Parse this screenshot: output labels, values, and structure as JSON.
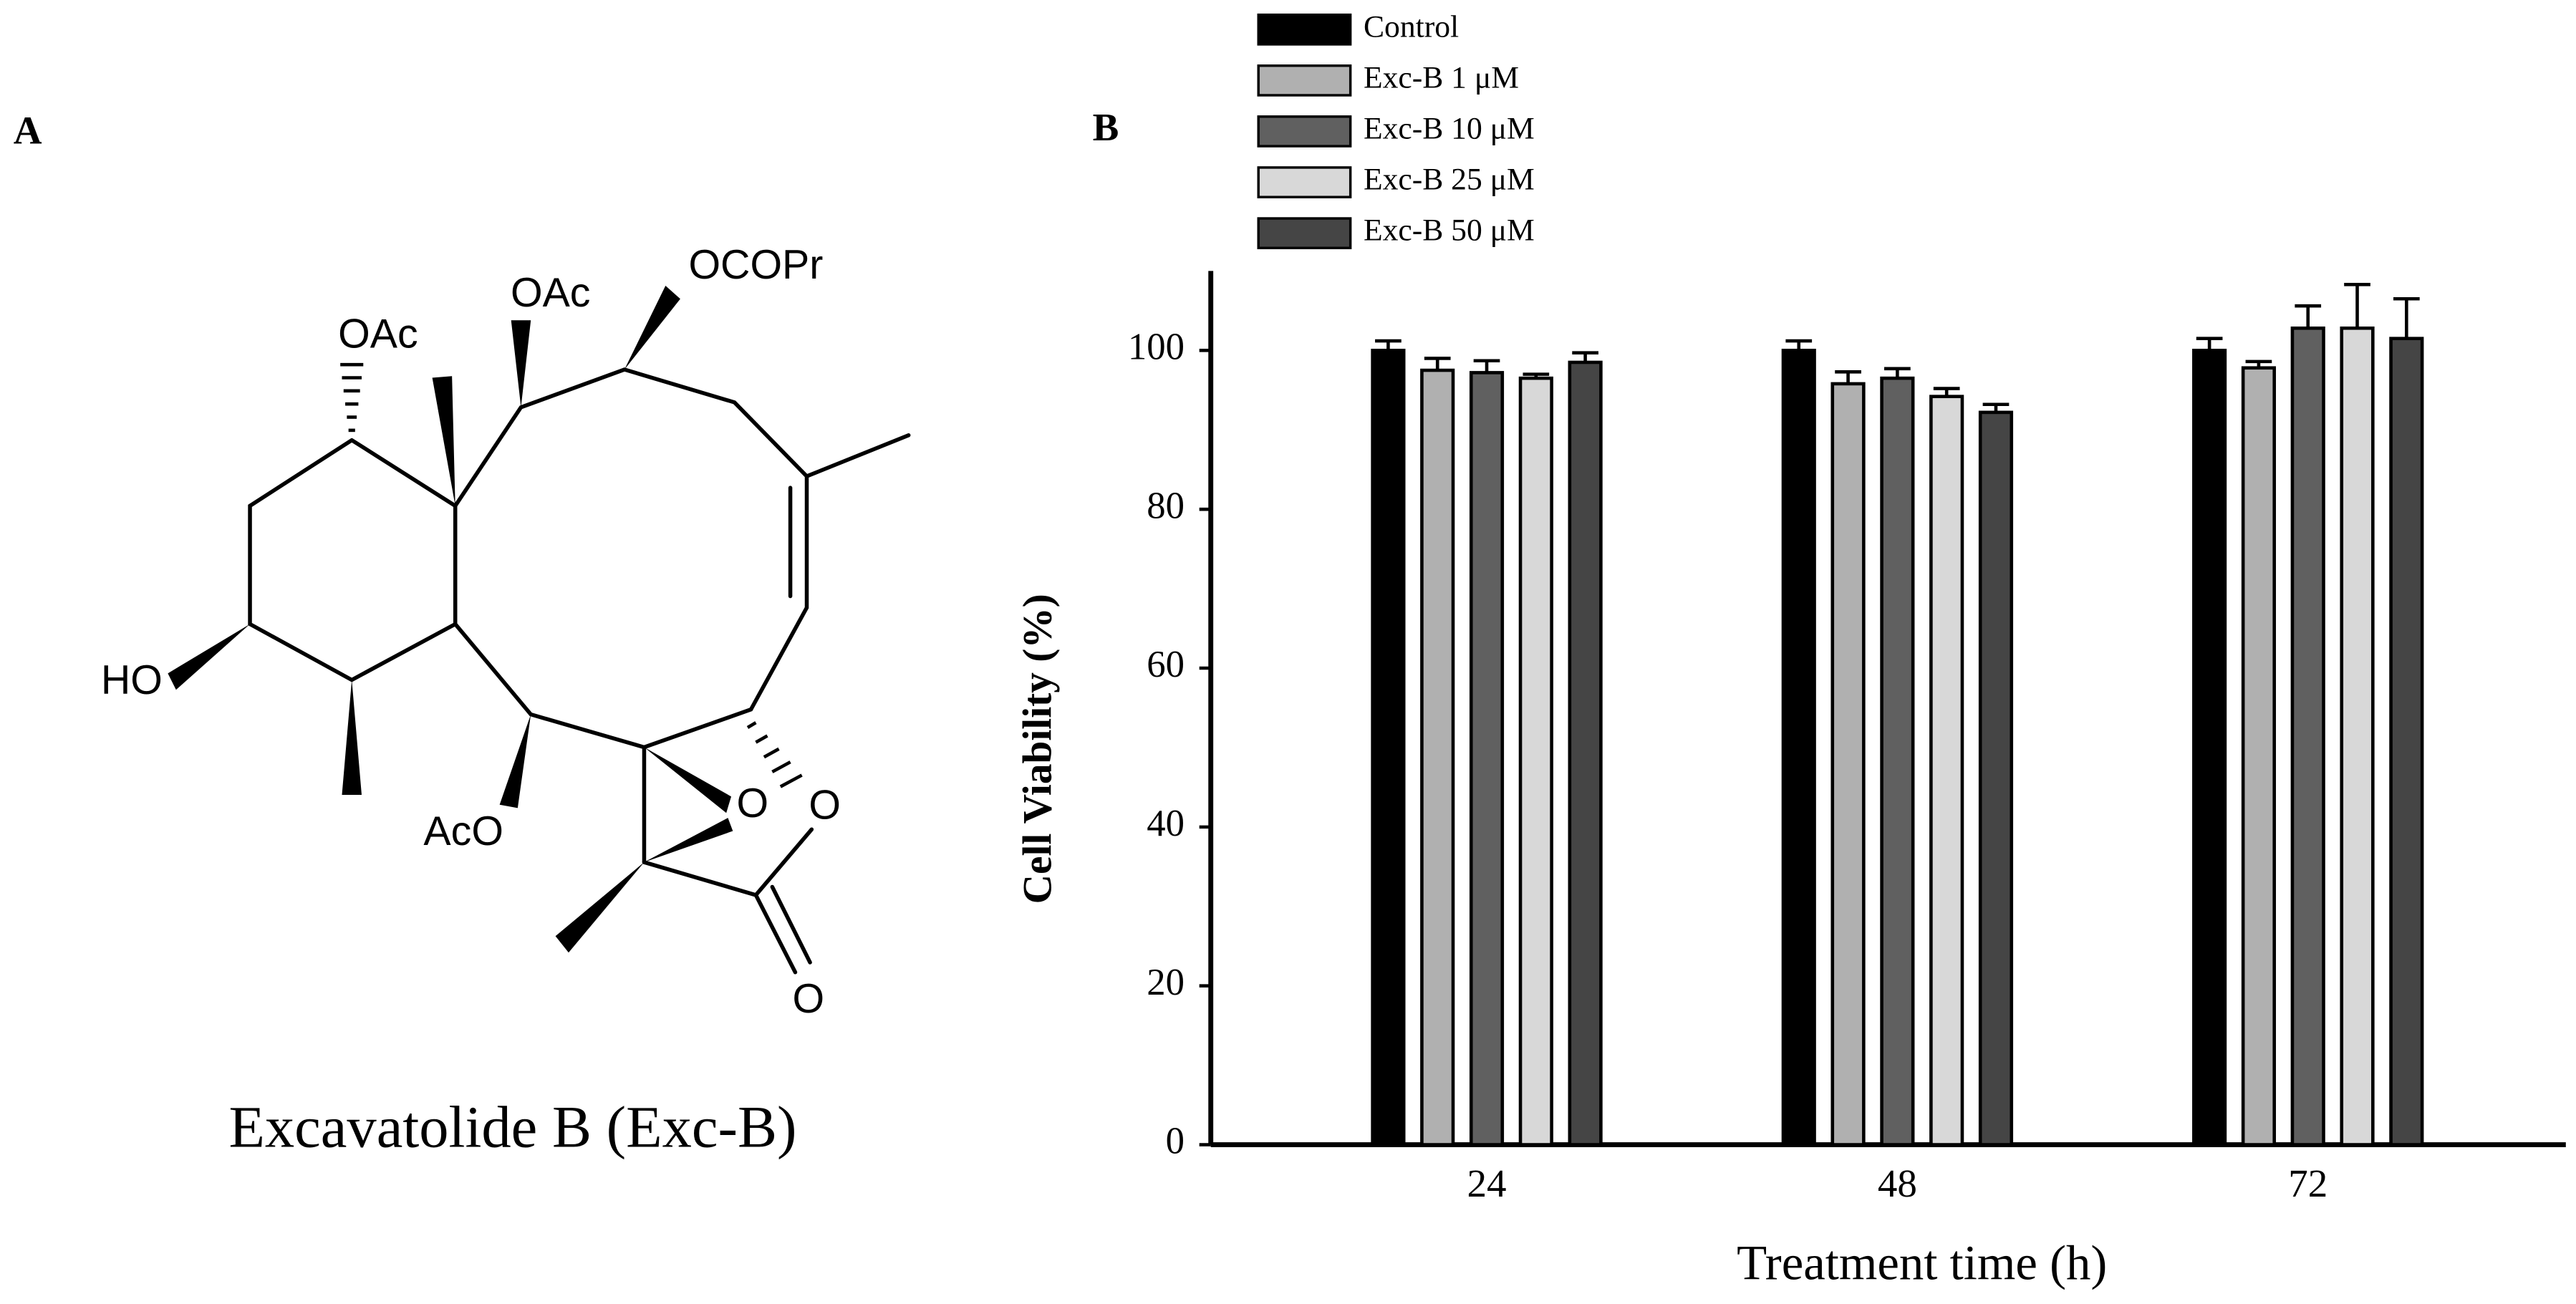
{
  "panel_a": {
    "label": "A",
    "caption": "Excavatolide B (Exc-B)",
    "atom_labels": [
      "OAc",
      "OAc",
      "OCOPr",
      "HO",
      "AcO",
      "O",
      "O",
      "O"
    ]
  },
  "chart_data": {
    "type": "bar",
    "panel_label": "B",
    "x_label": "Treatment time (h)",
    "y_label": "Cell Viability (%)",
    "categories": [
      "24",
      "48",
      "72"
    ],
    "series": [
      {
        "name": "Control",
        "color": "#000000",
        "values": [
          100,
          100,
          100
        ],
        "errors": [
          1.2,
          1.2,
          1.5
        ]
      },
      {
        "name": "Exc-B 1 μM",
        "color": "#b0b0b0",
        "values": [
          97.5,
          95.8,
          97.8
        ],
        "errors": [
          1.5,
          1.5,
          0.8
        ]
      },
      {
        "name": "Exc-B 10 μM",
        "color": "#606060",
        "values": [
          97.2,
          96.5,
          102.8
        ],
        "errors": [
          1.5,
          1.2,
          2.8
        ]
      },
      {
        "name": "Exc-B 25 μM",
        "color": "#d8d8d8",
        "values": [
          96.5,
          94.2,
          102.8
        ],
        "errors": [
          0.5,
          1.0,
          5.5
        ]
      },
      {
        "name": "Exc-B 50 μM",
        "color": "#454545",
        "values": [
          98.5,
          92.2,
          101.5
        ],
        "errors": [
          1.2,
          1.0,
          5.0
        ]
      }
    ],
    "ylim": [
      0,
      110
    ],
    "yticks": [
      0,
      20,
      40,
      60,
      80,
      100
    ]
  }
}
